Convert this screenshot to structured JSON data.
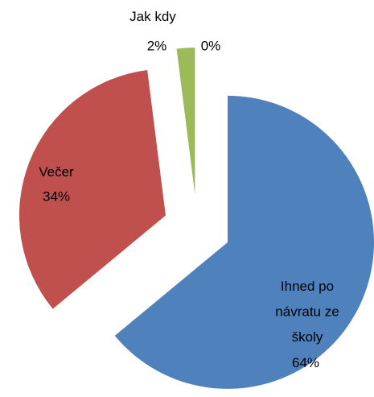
{
  "chart_data": {
    "type": "pie",
    "categories": [
      "Ihned po návratu ze školy",
      "Večer",
      "Jak kdy",
      null
    ],
    "values": [
      64,
      34,
      2,
      0
    ],
    "value_labels": [
      "64%",
      "34%",
      "2%",
      "0%"
    ],
    "colors": [
      "#4f81bd",
      "#c0504d",
      "#9bbb59",
      "#8064a2"
    ],
    "exploded": true
  }
}
